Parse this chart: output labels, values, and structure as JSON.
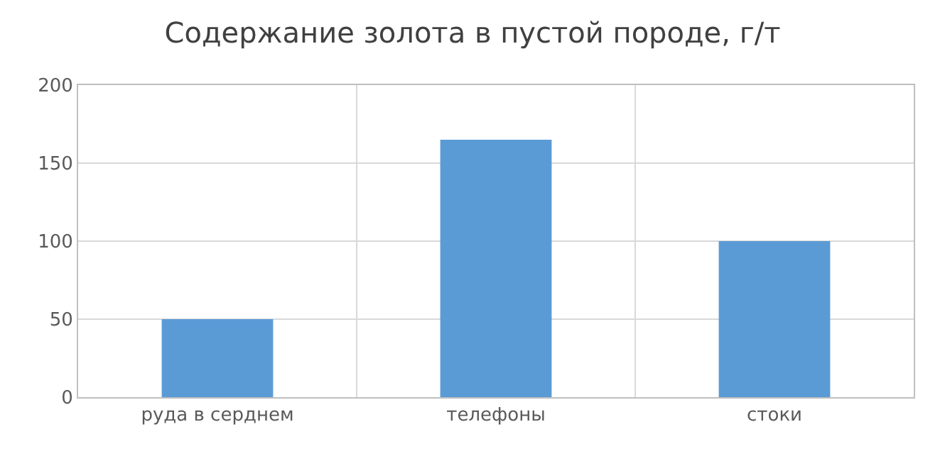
{
  "chart_data": {
    "type": "bar",
    "title": "Содержание золота в пустой породе, г/т",
    "categories": [
      "руда в серднем",
      "телефоны",
      "стоки"
    ],
    "values": [
      50,
      165,
      100
    ],
    "color": "#5b9bd5",
    "ylim": [
      0,
      200
    ],
    "yticks": [
      0,
      50,
      100,
      150,
      200
    ],
    "grid": true
  }
}
